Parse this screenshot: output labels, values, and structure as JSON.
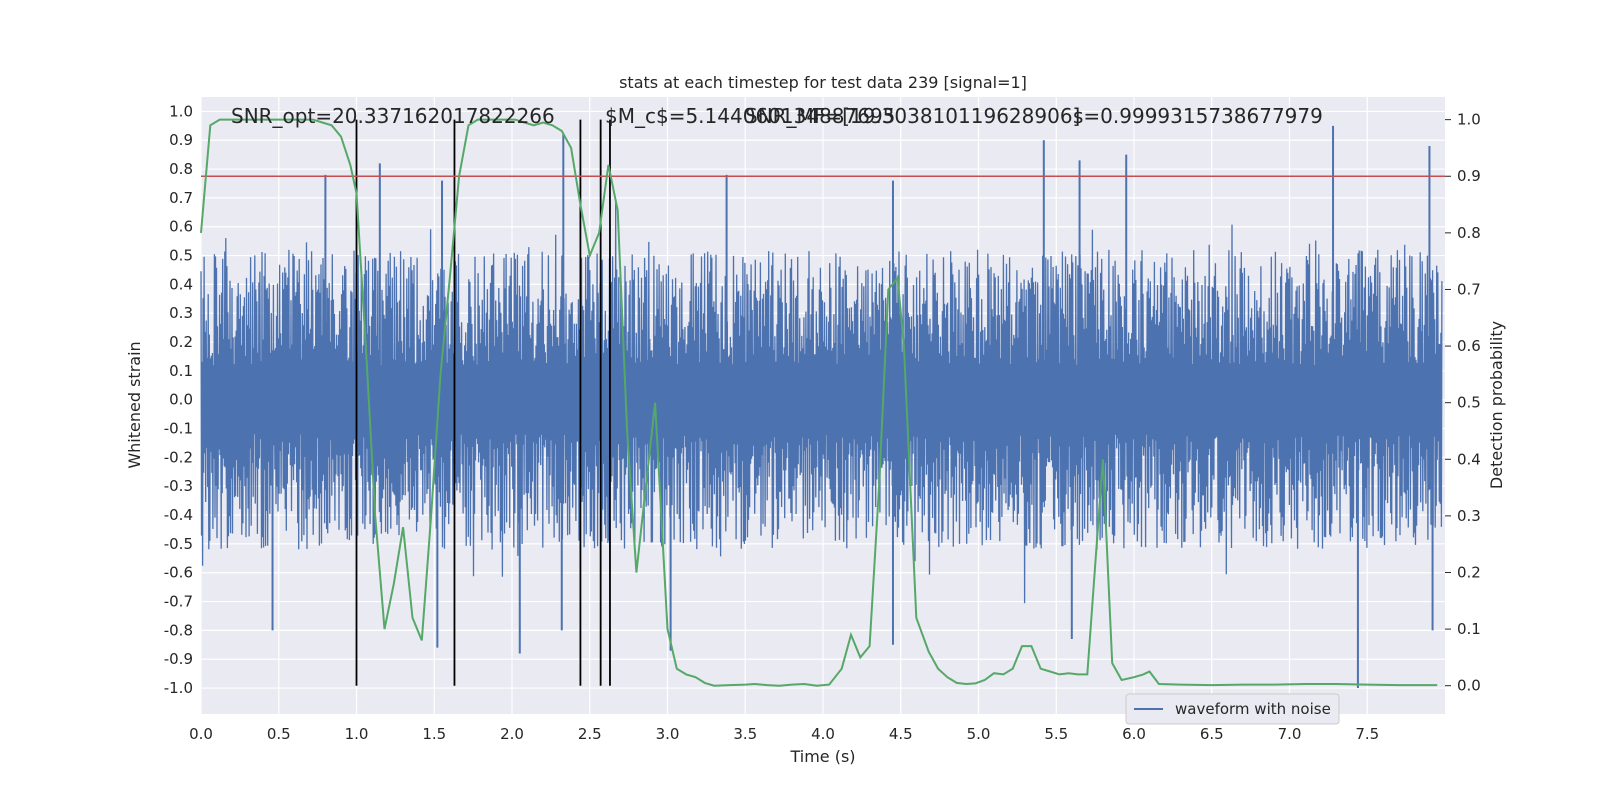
{
  "chart_data": {
    "type": "line",
    "title": "stats at each timestep for test data 239 [signal=1]",
    "xlabel": "Time (s)",
    "ylabel_left": "Whitened strain",
    "ylabel_right": "Detection probability",
    "xlim": [
      0.0,
      8.0
    ],
    "ylim_left": [
      -1.09,
      1.05
    ],
    "ylim_right": [
      -0.05,
      1.04
    ],
    "x_ticks": [
      "0.0",
      "0.5",
      "1.0",
      "1.5",
      "2.0",
      "2.5",
      "3.0",
      "3.5",
      "4.0",
      "4.5",
      "5.0",
      "5.5",
      "6.0",
      "6.5",
      "7.0",
      "7.5"
    ],
    "y_ticks_left": [
      "1.0",
      "0.9",
      "0.8",
      "0.7",
      "0.6",
      "0.5",
      "0.4",
      "0.3",
      "0.2",
      "0.1",
      "0.0",
      "-0.1",
      "-0.2",
      "-0.3",
      "-0.4",
      "-0.5",
      "-0.6",
      "-0.7",
      "-0.8",
      "-0.9",
      "-1.0"
    ],
    "y_ticks_right": [
      "1.0",
      "0.9",
      "0.8",
      "0.7",
      "0.6",
      "0.5",
      "0.4",
      "0.3",
      "0.2",
      "0.1",
      "0.0"
    ],
    "annotations": [
      "SNR_opt=20.337162017822266",
      "$M_c$=5.144060134887695",
      "SNR_MF=[19.303810119628906]",
      "s=0.9999315738677979"
    ],
    "threshold": 0.9,
    "vlines": [
      1.0,
      1.63,
      2.44,
      2.57,
      2.63
    ],
    "grid": true,
    "legend_position": "lower-right",
    "colors": {
      "strain": "#4c72b0",
      "probability": "#55a868",
      "threshold": "#c44e52",
      "vline": "#000000",
      "background": "#eaeaf2"
    },
    "series": [
      {
        "name": "waveform with noise",
        "axis": "left",
        "description_envelope": {
          "typical_upper": 0.45,
          "typical_lower": -0.45,
          "spikes": [
            {
              "x": 0.8,
              "y": 0.78
            },
            {
              "x": 1.15,
              "y": 0.82
            },
            {
              "x": 1.55,
              "y": 0.76
            },
            {
              "x": 2.33,
              "y": 0.92
            },
            {
              "x": 3.38,
              "y": 0.78
            },
            {
              "x": 4.45,
              "y": 0.76
            },
            {
              "x": 5.42,
              "y": 0.9
            },
            {
              "x": 5.65,
              "y": 0.83
            },
            {
              "x": 5.95,
              "y": 0.85
            },
            {
              "x": 7.28,
              "y": 0.95
            },
            {
              "x": 7.9,
              "y": 0.88
            },
            {
              "x": 0.46,
              "y": -0.8
            },
            {
              "x": 1.52,
              "y": -0.86
            },
            {
              "x": 2.05,
              "y": -0.88
            },
            {
              "x": 2.32,
              "y": -0.8
            },
            {
              "x": 3.02,
              "y": -0.87
            },
            {
              "x": 4.45,
              "y": -0.85
            },
            {
              "x": 5.6,
              "y": -0.83
            },
            {
              "x": 7.44,
              "y": -1.0
            },
            {
              "x": 7.92,
              "y": -0.8
            }
          ]
        }
      },
      {
        "name": "",
        "axis": "right",
        "x": [
          0.0,
          0.06,
          0.12,
          0.18,
          0.24,
          0.3,
          0.36,
          0.42,
          0.48,
          0.54,
          0.6,
          0.66,
          0.72,
          0.78,
          0.84,
          0.9,
          0.96,
          1.0,
          1.06,
          1.12,
          1.18,
          1.24,
          1.3,
          1.36,
          1.42,
          1.48,
          1.54,
          1.6,
          1.66,
          1.72,
          1.78,
          1.84,
          1.9,
          1.96,
          2.02,
          2.08,
          2.14,
          2.2,
          2.26,
          2.32,
          2.38,
          2.44,
          2.5,
          2.56,
          2.62,
          2.68,
          2.74,
          2.8,
          2.86,
          2.92,
          2.96,
          3.0,
          3.06,
          3.12,
          3.18,
          3.24,
          3.3,
          3.4,
          3.5,
          3.56,
          3.64,
          3.72,
          3.8,
          3.88,
          3.96,
          4.04,
          4.12,
          4.18,
          4.24,
          4.3,
          4.36,
          4.42,
          4.48,
          4.52,
          4.6,
          4.68,
          4.74,
          4.8,
          4.86,
          4.92,
          4.98,
          5.04,
          5.1,
          5.16,
          5.22,
          5.28,
          5.34,
          5.4,
          5.46,
          5.52,
          5.58,
          5.64,
          5.7,
          5.76,
          5.8,
          5.86,
          5.92,
          6.0,
          6.06,
          6.1,
          6.16,
          6.3,
          6.5,
          6.7,
          6.9,
          7.1,
          7.3,
          7.5,
          7.7,
          7.95
        ],
        "values": [
          0.8,
          0.99,
          1.0,
          1.0,
          1.0,
          1.0,
          1.0,
          1.0,
          1.0,
          1.0,
          1.0,
          1.0,
          1.0,
          0.995,
          0.99,
          0.97,
          0.92,
          0.87,
          0.6,
          0.3,
          0.1,
          0.18,
          0.28,
          0.12,
          0.08,
          0.3,
          0.55,
          0.72,
          0.9,
          0.99,
          1.0,
          1.0,
          1.0,
          1.0,
          1.0,
          0.995,
          0.99,
          0.995,
          0.99,
          0.98,
          0.95,
          0.85,
          0.76,
          0.8,
          0.92,
          0.84,
          0.45,
          0.2,
          0.35,
          0.5,
          0.3,
          0.1,
          0.03,
          0.02,
          0.015,
          0.005,
          0.0,
          0.001,
          0.002,
          0.003,
          0.001,
          0.0,
          0.002,
          0.003,
          0.0,
          0.002,
          0.03,
          0.09,
          0.05,
          0.07,
          0.35,
          0.7,
          0.72,
          0.6,
          0.12,
          0.06,
          0.03,
          0.015,
          0.005,
          0.003,
          0.004,
          0.01,
          0.022,
          0.02,
          0.03,
          0.07,
          0.07,
          0.03,
          0.025,
          0.02,
          0.022,
          0.02,
          0.02,
          0.25,
          0.4,
          0.04,
          0.01,
          0.015,
          0.02,
          0.025,
          0.003,
          0.002,
          0.001,
          0.002,
          0.002,
          0.003,
          0.003,
          0.002,
          0.001,
          0.001
        ]
      }
    ]
  }
}
